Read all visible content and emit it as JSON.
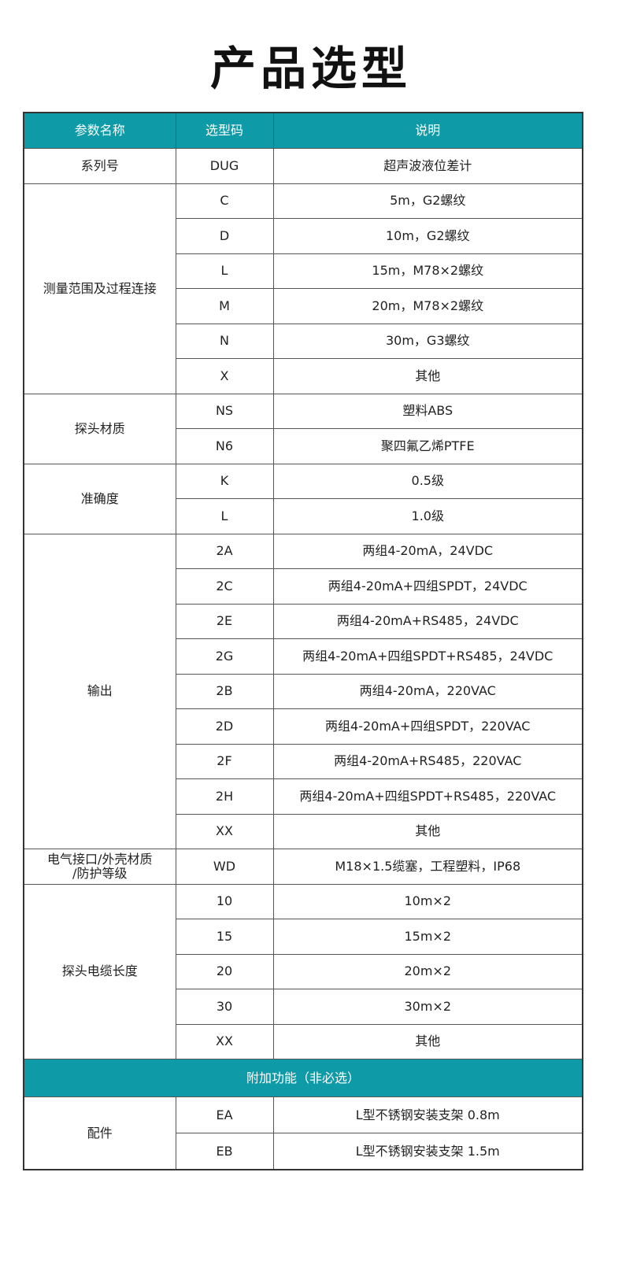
{
  "title": "产品选型",
  "colors": {
    "header_bg": "#0e9aa7"
  },
  "headers": [
    "参数名称",
    "选型码",
    "说明"
  ],
  "groups": [
    {
      "name": "系列号",
      "rows": [
        [
          "DUG",
          "超声波液位差计"
        ]
      ]
    },
    {
      "name": "测量范围及过程连接",
      "rows": [
        [
          "C",
          "5m，G2螺纹"
        ],
        [
          "D",
          "10m，G2螺纹"
        ],
        [
          "L",
          "15m，M78×2螺纹"
        ],
        [
          "M",
          "20m，M78×2螺纹"
        ],
        [
          "N",
          "30m，G3螺纹"
        ],
        [
          "X",
          "其他"
        ]
      ]
    },
    {
      "name": "探头材质",
      "rows": [
        [
          "NS",
          "塑料ABS"
        ],
        [
          "N6",
          "聚四氟乙烯PTFE"
        ]
      ]
    },
    {
      "name": "准确度",
      "rows": [
        [
          "K",
          "0.5级"
        ],
        [
          "L",
          "1.0级"
        ]
      ]
    },
    {
      "name": "输出",
      "rows": [
        [
          "2A",
          "两组4-20mA，24VDC"
        ],
        [
          "2C",
          "两组4-20mA+四组SPDT，24VDC"
        ],
        [
          "2E",
          "两组4-20mA+RS485，24VDC"
        ],
        [
          "2G",
          "两组4-20mA+四组SPDT+RS485，24VDC"
        ],
        [
          "2B",
          "两组4-20mA，220VAC"
        ],
        [
          "2D",
          "两组4-20mA+四组SPDT，220VAC"
        ],
        [
          "2F",
          "两组4-20mA+RS485，220VAC"
        ],
        [
          "2H",
          "两组4-20mA+四组SPDT+RS485，220VAC"
        ],
        [
          "XX",
          "其他"
        ]
      ]
    },
    {
      "name": "电气接口/外壳材质\n/防护等级",
      "rows": [
        [
          "WD",
          "M18×1.5缆塞，工程塑料，IP68"
        ]
      ]
    },
    {
      "name": "探头电缆长度",
      "rows": [
        [
          "10",
          "10m×2"
        ],
        [
          "15",
          "15m×2"
        ],
        [
          "20",
          "20m×2"
        ],
        [
          "30",
          "30m×2"
        ],
        [
          "XX",
          "其他"
        ]
      ]
    }
  ],
  "addon_title": "附加功能（非必选）",
  "addon_groups": [
    {
      "name": "配件",
      "rows": [
        [
          "EA",
          "L型不锈钢安装支架 0.8m"
        ],
        [
          "EB",
          "L型不锈钢安装支架 1.5m"
        ]
      ]
    }
  ]
}
